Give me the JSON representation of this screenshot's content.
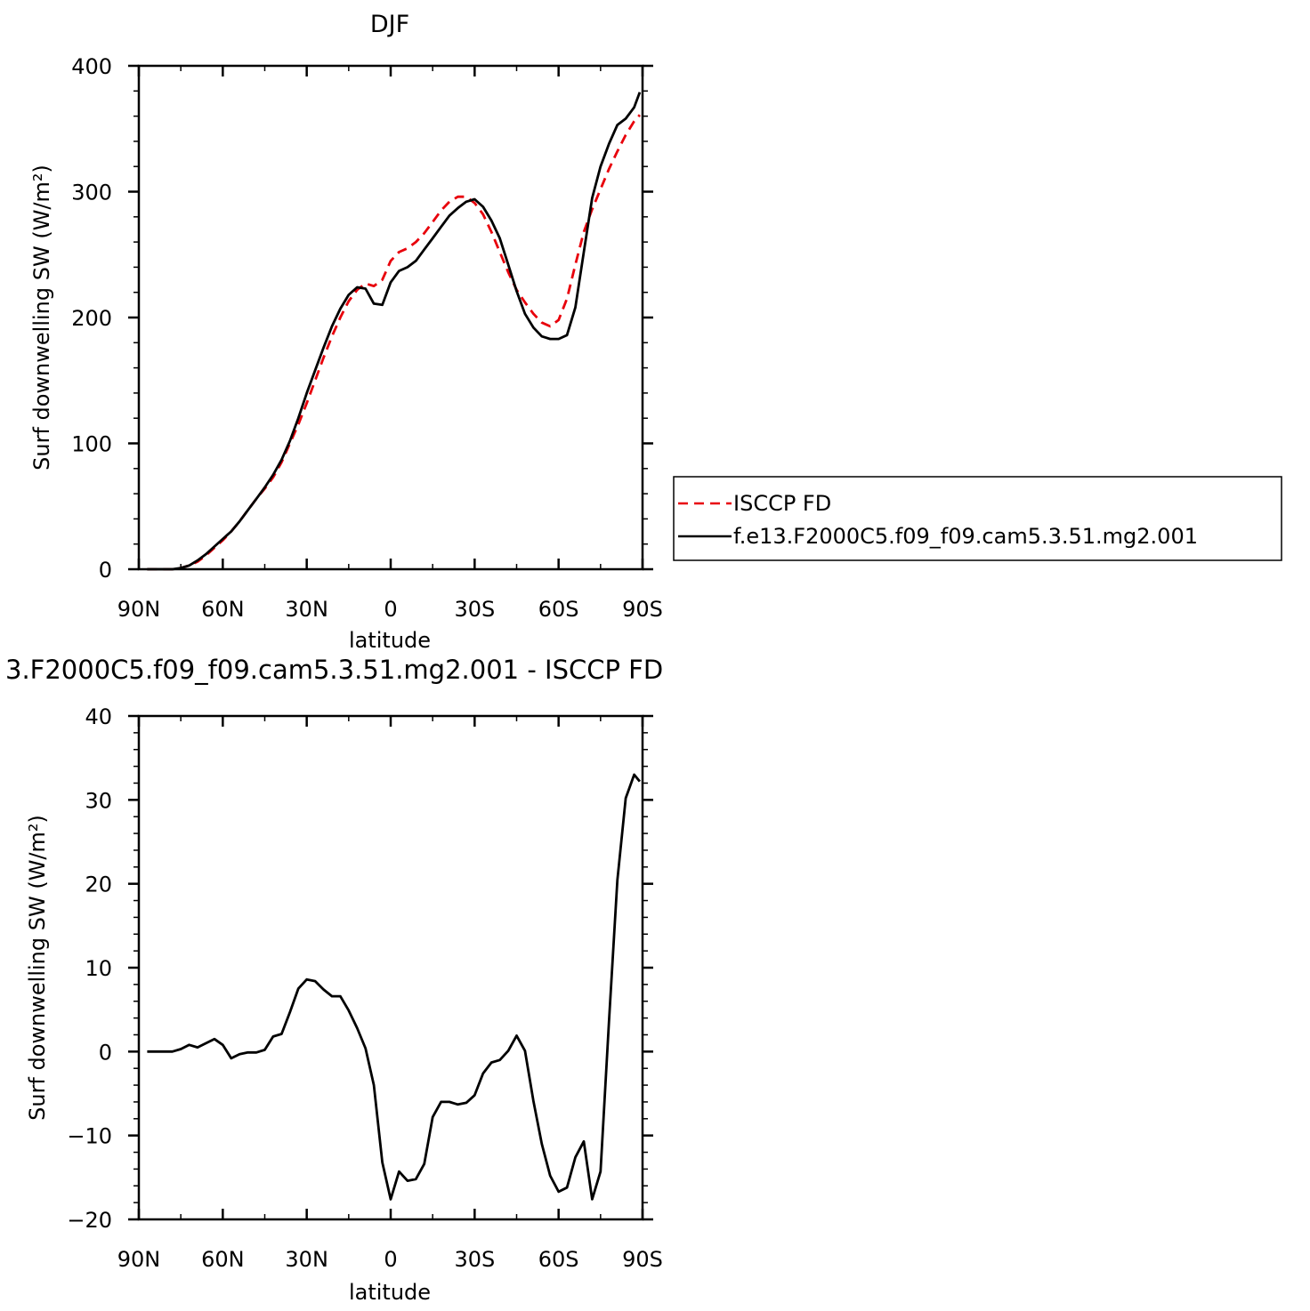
{
  "chart_data": [
    {
      "type": "line",
      "title": "DJF",
      "xlabel": "latitude",
      "ylabel": "Surf downwelling SW (W/m²)",
      "xlim": [
        -90,
        90
      ],
      "ylim": [
        0,
        400
      ],
      "x_ticks": [
        -90,
        -60,
        -30,
        0,
        30,
        60,
        90
      ],
      "x_tick_labels": [
        "90N",
        "60N",
        "30N",
        "0",
        "30S",
        "60S",
        "90S"
      ],
      "y_ticks": [
        0,
        100,
        200,
        300,
        400
      ],
      "y_tick_labels": [
        "0",
        "100",
        "200",
        "300",
        "400"
      ],
      "legend": "right",
      "series": [
        {
          "name": "ISCCP FD",
          "color": "#e8000b",
          "dash": "dashed",
          "x": [
            -87,
            -84,
            -81,
            -78,
            -75,
            -72,
            -69,
            -66,
            -63,
            -60,
            -57,
            -54,
            -51,
            -48,
            -45,
            -42,
            -39,
            -36,
            -33,
            -30,
            -27,
            -24,
            -21,
            -18,
            -15,
            -12,
            -9,
            -6,
            -3,
            0,
            3,
            6,
            9,
            12,
            15,
            18,
            21,
            24,
            27,
            30,
            33,
            36,
            39,
            42,
            45,
            48,
            51,
            54,
            57,
            60,
            63,
            66,
            69,
            72,
            75,
            78,
            81,
            84,
            87,
            89
          ],
          "values": [
            0,
            0,
            0,
            0,
            1,
            3,
            6,
            11,
            17,
            23,
            30,
            38,
            47,
            56,
            64,
            73,
            85,
            100,
            115,
            132,
            150,
            168,
            185,
            200,
            213,
            222,
            227,
            225,
            230,
            245,
            252,
            255,
            260,
            267,
            276,
            285,
            292,
            296,
            296,
            291,
            282,
            268,
            252,
            236,
            222,
            212,
            203,
            196,
            193,
            198,
            215,
            242,
            268,
            286,
            302,
            318,
            332,
            345,
            356,
            361
          ]
        },
        {
          "name": "f.e13.F2000C5.f09_f09.cam5.3.51.mg2.001",
          "color": "#000000",
          "dash": "solid",
          "x": [
            -87,
            -84,
            -81,
            -78,
            -75,
            -72,
            -69,
            -66,
            -63,
            -60,
            -57,
            -54,
            -51,
            -48,
            -45,
            -42,
            -39,
            -36,
            -33,
            -30,
            -27,
            -24,
            -21,
            -18,
            -15,
            -12,
            -9,
            -6,
            -3,
            0,
            3,
            6,
            9,
            12,
            15,
            18,
            21,
            24,
            27,
            30,
            33,
            36,
            39,
            42,
            45,
            48,
            51,
            54,
            57,
            60,
            63,
            66,
            69,
            72,
            75,
            78,
            81,
            84,
            87,
            89
          ],
          "values": [
            0,
            0,
            0,
            0,
            1,
            3,
            7,
            12,
            18,
            24,
            30,
            38,
            47,
            56,
            65,
            75,
            87,
            102,
            120,
            140,
            158,
            176,
            193,
            207,
            218,
            224,
            223,
            211,
            210,
            228,
            237,
            240,
            245,
            254,
            263,
            272,
            281,
            287,
            292,
            294,
            288,
            277,
            263,
            242,
            221,
            203,
            192,
            185,
            183,
            183,
            186,
            208,
            252,
            295,
            320,
            338,
            353,
            358,
            367,
            379
          ]
        }
      ]
    },
    {
      "type": "line",
      "title": "3.F2000C5.f09_f09.cam5.3.51.mg2.001 - ISCCP FD",
      "xlabel": "latitude",
      "ylabel": "Surf downwelling SW (W/m²)",
      "xlim": [
        -90,
        90
      ],
      "ylim": [
        -20,
        40
      ],
      "x_ticks": [
        -90,
        -60,
        -30,
        0,
        30,
        60,
        90
      ],
      "x_tick_labels": [
        "90N",
        "60N",
        "30N",
        "0",
        "30S",
        "60S",
        "90S"
      ],
      "y_ticks": [
        -20,
        -10,
        0,
        10,
        20,
        30,
        40
      ],
      "y_tick_labels": [
        "−20",
        "−10",
        "0",
        "10",
        "20",
        "30",
        "40"
      ],
      "series": [
        {
          "color": "#000000",
          "dash": "solid",
          "x": [
            -87,
            -84,
            -81,
            -78,
            -75,
            -72,
            -69,
            -66,
            -63,
            -60,
            -57,
            -54,
            -51,
            -48,
            -45,
            -42,
            -39,
            -36,
            -33,
            -30,
            -27,
            -24,
            -21,
            -18,
            -15,
            -12,
            -9,
            -6,
            -3,
            0,
            3,
            6,
            9,
            12,
            15,
            18,
            21,
            24,
            27,
            30,
            33,
            36,
            39,
            42,
            45,
            48,
            51,
            54,
            57,
            60,
            63,
            66,
            69,
            72,
            75,
            78,
            81,
            84,
            87,
            89
          ],
          "values": [
            0,
            0,
            0,
            0,
            0.3,
            0.8,
            0.5,
            1.0,
            1.5,
            0.8,
            -0.8,
            -0.3,
            -0.1,
            -0.1,
            0.2,
            1.8,
            2.1,
            4.7,
            7.5,
            8.6,
            8.4,
            7.4,
            6.6,
            6.6,
            4.9,
            2.8,
            0.4,
            -4.0,
            -13.2,
            -17.6,
            -14.3,
            -15.4,
            -15.2,
            -13.4,
            -7.8,
            -6.0,
            -6.0,
            -6.3,
            -6.1,
            -5.2,
            -2.6,
            -1.3,
            -1.0,
            0.1,
            1.9,
            0.1,
            -5.9,
            -11.0,
            -14.8,
            -16.7,
            -16.2,
            -12.6,
            -10.7,
            -17.6,
            -14.3,
            3.6,
            20.4,
            30.2,
            33.0,
            32.2
          ]
        }
      ]
    }
  ]
}
